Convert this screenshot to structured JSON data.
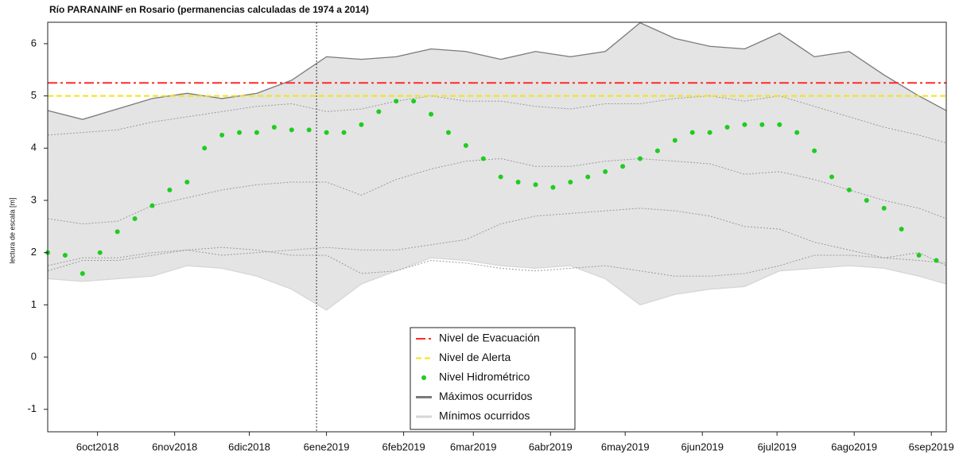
{
  "chart_data": {
    "type": "line",
    "title": "Río PARANAINF en Rosario (permanencias calculadas de 1974 a 2014)",
    "ylabel": "lectura de escala [m]",
    "xlim": [
      "2018-09-16",
      "2019-09-12"
    ],
    "ylim": [
      -1.43,
      6.41
    ],
    "yticks": [
      -1,
      0,
      1,
      2,
      3,
      4,
      5,
      6
    ],
    "xticks": [
      {
        "value": "2018-10-06",
        "label": "6oct2018"
      },
      {
        "value": "2018-11-06",
        "label": "6nov2018"
      },
      {
        "value": "2018-12-06",
        "label": "6dic2018"
      },
      {
        "value": "2019-01-06",
        "label": "6ene2019"
      },
      {
        "value": "2019-02-06",
        "label": "6feb2019"
      },
      {
        "value": "2019-03-06",
        "label": "6mar2019"
      },
      {
        "value": "2019-04-06",
        "label": "6abr2019"
      },
      {
        "value": "2019-05-06",
        "label": "6may2019"
      },
      {
        "value": "2019-06-06",
        "label": "6jun2019"
      },
      {
        "value": "2019-07-06",
        "label": "6jul2019"
      },
      {
        "value": "2019-08-06",
        "label": "6ago2019"
      },
      {
        "value": "2019-09-06",
        "label": "6sep2019"
      }
    ],
    "grid": false,
    "legend": "bottom",
    "band_color": "#e4e4e4",
    "vline": "2019-01-02",
    "x": [
      "2018-09-16",
      "2018-09-30",
      "2018-10-14",
      "2018-10-28",
      "2018-11-11",
      "2018-11-25",
      "2018-12-09",
      "2018-12-23",
      "2019-01-06",
      "2019-01-20",
      "2019-02-03",
      "2019-02-17",
      "2019-03-03",
      "2019-03-17",
      "2019-03-31",
      "2019-04-14",
      "2019-04-28",
      "2019-05-12",
      "2019-05-26",
      "2019-06-09",
      "2019-06-23",
      "2019-07-07",
      "2019-07-21",
      "2019-08-04",
      "2019-08-18",
      "2019-09-01",
      "2019-09-12"
    ],
    "hlines": [
      {
        "name": "Nivel de Evacuación",
        "color": "#ff2a2a",
        "value": 5.25,
        "dash": "dashdot"
      },
      {
        "name": "Nivel de Alerta",
        "color": "#f2e318",
        "value": 5,
        "dash": "dashed"
      }
    ],
    "points": {
      "name": "Nivel Hidrométrico",
      "color": "#1fcc1f",
      "x": [
        "2018-09-16",
        "2018-09-23",
        "2018-09-30",
        "2018-10-07",
        "2018-10-14",
        "2018-10-21",
        "2018-10-28",
        "2018-11-04",
        "2018-11-11",
        "2018-11-18",
        "2018-11-25",
        "2018-12-02",
        "2018-12-09",
        "2018-12-16",
        "2018-12-23",
        "2018-12-30",
        "2019-01-06",
        "2019-01-13",
        "2019-01-20",
        "2019-01-27",
        "2019-02-03",
        "2019-02-10",
        "2019-02-17",
        "2019-02-24",
        "2019-03-03",
        "2019-03-10",
        "2019-03-17",
        "2019-03-24",
        "2019-03-31",
        "2019-04-07",
        "2019-04-14",
        "2019-04-21",
        "2019-04-28",
        "2019-05-05",
        "2019-05-12",
        "2019-05-19",
        "2019-05-26",
        "2019-06-02",
        "2019-06-09",
        "2019-06-16",
        "2019-06-23",
        "2019-06-30",
        "2019-07-07",
        "2019-07-14",
        "2019-07-21",
        "2019-07-28",
        "2019-08-04",
        "2019-08-11",
        "2019-08-18",
        "2019-08-25",
        "2019-09-01",
        "2019-09-08"
      ],
      "values": [
        2.0,
        1.95,
        1.6,
        2.0,
        2.4,
        2.65,
        2.9,
        3.2,
        3.35,
        4.0,
        4.25,
        4.3,
        4.3,
        4.4,
        4.35,
        4.35,
        4.3,
        4.3,
        4.45,
        4.7,
        4.9,
        4.9,
        4.65,
        4.3,
        4.05,
        3.8,
        3.45,
        3.35,
        3.3,
        3.25,
        3.35,
        3.45,
        3.55,
        3.65,
        3.8,
        3.95,
        4.15,
        4.3,
        4.3,
        4.4,
        4.45,
        4.45,
        4.45,
        4.3,
        3.95,
        3.45,
        3.2,
        3.0,
        2.85,
        2.45,
        1.95,
        1.85
      ]
    },
    "series": [
      {
        "name": "Máximos ocurridos",
        "color": "#7a7a7a",
        "values": [
          4.72,
          4.55,
          4.75,
          4.95,
          5.05,
          4.95,
          5.05,
          5.3,
          5.75,
          5.7,
          5.75,
          5.9,
          5.85,
          5.7,
          5.85,
          5.75,
          5.85,
          6.4,
          6.1,
          5.95,
          5.9,
          6.2,
          5.75,
          5.85,
          5.4,
          5.0,
          4.72
        ]
      },
      {
        "name": "Mínimos ocurridos",
        "color": "#d6d6d6",
        "values": [
          1.5,
          1.45,
          1.5,
          1.55,
          1.75,
          1.7,
          1.55,
          1.3,
          0.9,
          1.4,
          1.65,
          1.9,
          1.85,
          1.75,
          1.7,
          1.75,
          1.5,
          1.0,
          1.2,
          1.3,
          1.35,
          1.65,
          1.7,
          1.75,
          1.7,
          1.55,
          1.4
        ]
      },
      {
        "color": "#9a9a9a",
        "style": "dotted",
        "values": [
          4.25,
          4.3,
          4.35,
          4.5,
          4.6,
          4.7,
          4.8,
          4.85,
          4.7,
          4.75,
          4.9,
          5.0,
          4.9,
          4.9,
          4.8,
          4.75,
          4.85,
          4.85,
          4.95,
          5.0,
          4.9,
          5.0,
          4.8,
          4.6,
          4.4,
          4.25,
          4.1
        ]
      },
      {
        "color": "#9a9a9a",
        "style": "dotted",
        "values": [
          2.65,
          2.55,
          2.6,
          2.9,
          3.05,
          3.2,
          3.3,
          3.35,
          3.35,
          3.1,
          3.4,
          3.6,
          3.75,
          3.8,
          3.65,
          3.65,
          3.75,
          3.8,
          3.75,
          3.7,
          3.5,
          3.55,
          3.4,
          3.2,
          3.0,
          2.85,
          2.65
        ]
      },
      {
        "color": "#9a9a9a",
        "style": "dotted",
        "values": [
          1.75,
          1.9,
          1.9,
          2.0,
          2.05,
          1.95,
          2.0,
          2.05,
          2.1,
          2.05,
          2.05,
          2.15,
          2.25,
          2.55,
          2.7,
          2.75,
          2.8,
          2.85,
          2.8,
          2.7,
          2.5,
          2.45,
          2.2,
          2.05,
          1.9,
          1.85,
          1.8
        ]
      },
      {
        "color": "#9a9a9a",
        "style": "dotted",
        "values": [
          1.65,
          1.85,
          1.85,
          1.95,
          2.05,
          2.1,
          2.05,
          1.95,
          1.95,
          1.6,
          1.65,
          1.85,
          1.8,
          1.7,
          1.65,
          1.7,
          1.75,
          1.65,
          1.55,
          1.55,
          1.6,
          1.75,
          1.95,
          1.95,
          1.9,
          2.0,
          1.75
        ]
      }
    ]
  }
}
